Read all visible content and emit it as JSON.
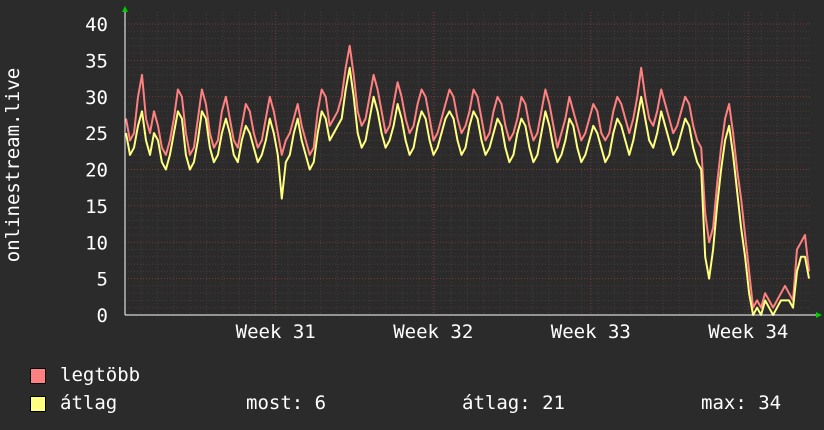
{
  "colors": {
    "background": "#2b2b2b",
    "grid": "#5a3a3a",
    "axis": "#ffffff",
    "max_line": "#ff8080",
    "avg_line": "#ffff80"
  },
  "chart_data": {
    "type": "line",
    "ylabel": "onlinestream.live",
    "ylim": [
      0,
      40
    ],
    "yticks": [
      "0",
      "5",
      "10",
      "15",
      "20",
      "25",
      "30",
      "35",
      "40"
    ],
    "xticks": [
      {
        "label": "Week 31",
        "at": 0.22
      },
      {
        "label": "Week 32",
        "at": 0.45
      },
      {
        "label": "Week 33",
        "at": 0.68
      },
      {
        "label": "Week 34",
        "at": 0.91
      }
    ],
    "grid": true,
    "series": [
      {
        "name": "legtöbb",
        "color": "#ff8080",
        "values": [
          27,
          24,
          25,
          30,
          33,
          27,
          25,
          28,
          26,
          23,
          22,
          24,
          27,
          31,
          30,
          25,
          22,
          23,
          27,
          31,
          29,
          25,
          23,
          24,
          28,
          30,
          27,
          24,
          23,
          26,
          29,
          28,
          25,
          23,
          24,
          27,
          30,
          28,
          25,
          22,
          24,
          25,
          27,
          29,
          26,
          24,
          22,
          23,
          28,
          31,
          30,
          26,
          27,
          28,
          30,
          34,
          37,
          33,
          28,
          26,
          27,
          30,
          33,
          31,
          28,
          25,
          26,
          29,
          32,
          30,
          27,
          25,
          26,
          29,
          31,
          30,
          27,
          24,
          25,
          27,
          29,
          31,
          30,
          27,
          25,
          26,
          28,
          31,
          30,
          27,
          24,
          25,
          28,
          30,
          29,
          26,
          24,
          25,
          27,
          30,
          29,
          26,
          24,
          25,
          28,
          31,
          29,
          26,
          23,
          25,
          27,
          30,
          28,
          26,
          24,
          25,
          27,
          29,
          28,
          25,
          24,
          25,
          28,
          30,
          29,
          27,
          25,
          27,
          30,
          34,
          30,
          27,
          26,
          28,
          31,
          29,
          27,
          25,
          26,
          28,
          30,
          29,
          26,
          24,
          23,
          14,
          10,
          12,
          18,
          23,
          27,
          29,
          25,
          20,
          16,
          11,
          6,
          1,
          2,
          1,
          3,
          2,
          1,
          2,
          3,
          4,
          3,
          2,
          9,
          10,
          11,
          6
        ]
      },
      {
        "name": "átlag",
        "color": "#ffff80",
        "values": [
          25,
          22,
          23,
          26,
          28,
          24,
          22,
          25,
          24,
          21,
          20,
          22,
          25,
          28,
          27,
          22,
          20,
          21,
          24,
          28,
          27,
          23,
          21,
          22,
          25,
          27,
          25,
          22,
          21,
          24,
          26,
          25,
          23,
          21,
          22,
          24,
          27,
          25,
          22,
          16,
          21,
          22,
          25,
          27,
          24,
          22,
          20,
          21,
          25,
          28,
          27,
          24,
          25,
          26,
          27,
          31,
          34,
          30,
          25,
          23,
          24,
          27,
          30,
          28,
          25,
          23,
          24,
          26,
          29,
          27,
          24,
          22,
          23,
          26,
          28,
          27,
          24,
          22,
          23,
          25,
          27,
          28,
          27,
          24,
          22,
          23,
          26,
          28,
          27,
          24,
          22,
          23,
          25,
          27,
          26,
          23,
          21,
          22,
          25,
          27,
          26,
          23,
          21,
          22,
          25,
          28,
          26,
          23,
          21,
          22,
          24,
          27,
          26,
          23,
          21,
          22,
          24,
          26,
          25,
          23,
          21,
          22,
          25,
          27,
          26,
          24,
          22,
          24,
          27,
          30,
          27,
          24,
          23,
          25,
          28,
          26,
          24,
          22,
          23,
          25,
          27,
          26,
          23,
          21,
          20,
          8,
          5,
          9,
          15,
          20,
          24,
          26,
          22,
          17,
          12,
          8,
          3,
          0,
          1,
          0,
          2,
          1,
          0,
          1,
          2,
          2,
          2,
          1,
          6,
          8,
          8,
          5
        ]
      }
    ]
  },
  "legend": [
    {
      "label": "legtöbb",
      "color": "#ff8080"
    },
    {
      "label": "átlag",
      "color": "#ffff80"
    }
  ],
  "stats": {
    "most": "most: 6",
    "atlag": "átlag: 21",
    "max": "max: 34"
  }
}
